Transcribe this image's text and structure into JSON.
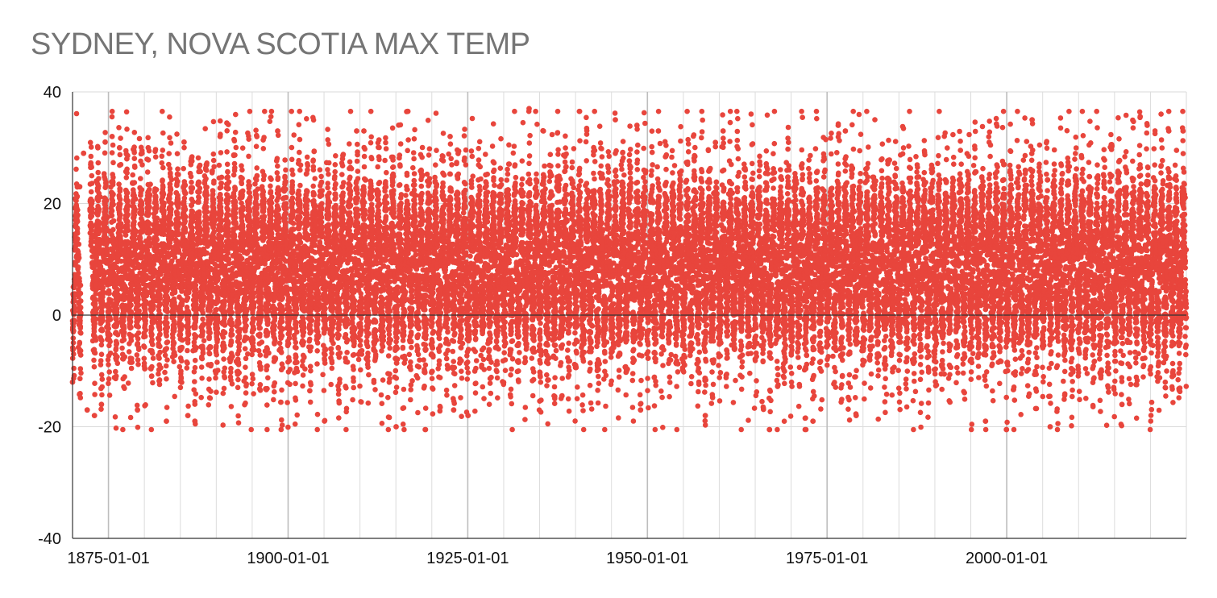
{
  "chart_data": {
    "type": "scatter",
    "title": "SYDNEY, NOVA SCOTIA MAX TEMP",
    "xlabel": "",
    "ylabel": "",
    "x_range": [
      "1870-01-01",
      "2024-12-31"
    ],
    "ylim": [
      -40,
      40
    ],
    "y_ticks": [
      40,
      20,
      0,
      -20,
      -40
    ],
    "y_tick_labels": [
      "40",
      "20",
      "0",
      "-20",
      "-40"
    ],
    "x_tick_labels": [
      "1875-01-01",
      "1900-01-01",
      "1925-01-01",
      "1950-01-01",
      "1975-01-01",
      "2000-01-01"
    ],
    "x_gridlines": "every 5 years",
    "grid": true,
    "legend": "none",
    "marker_color": "#e8453c",
    "series": [
      {
        "x": [
          "1870-01-01",
          "1871-01-01",
          "1871-07-15",
          "1872-07-10",
          "1873-07-12",
          "1874-07-20",
          "1875-07-05",
          "1876-07-18",
          "1877-07-22",
          "1880-07-14",
          "1885-07-10",
          "1890-07-16",
          "1898-07-20",
          "1909-07-14",
          "1910-07-18",
          "1922-07-20",
          "1933-07-15",
          "1935-07-12",
          "1945-07-18",
          "1948-07-20",
          "1951-07-14",
          "1960-07-16",
          "1976-07-20",
          "1977-07-18",
          "2003-07-15",
          "2022-07-20",
          "2024-07-18",
          "1871-01-20",
          "1872-01-15",
          "1873-01-18",
          "1874-01-10",
          "1879-01-15",
          "1883-01-25",
          "1886-01-20",
          "1887-01-12",
          "1915-01-12",
          "1923-01-15",
          "1925-01-14",
          "1949-01-18",
          "1958-01-20",
          "1973-01-15",
          "1979-01-18",
          "1997-01-20",
          "2006-01-18",
          "2016-01-15",
          "2023-01-12",
          "1870-04-15",
          "1872-10-15",
          "1895-04-10",
          "1912-10-20",
          "1931-04-15",
          "1955-10-15",
          "1968-04-20",
          "1988-10-10",
          "2011-04-15",
          "2024-10-10"
        ],
        "y": [
          -12,
          23,
          29,
          27,
          30,
          31,
          32,
          30,
          28,
          30,
          31,
          32,
          33,
          33,
          33,
          32,
          37,
          33,
          35,
          34,
          33,
          33,
          34,
          33,
          35,
          33,
          33,
          -1,
          -17,
          -18,
          -16,
          -17,
          -19,
          -18,
          -19,
          -20,
          -17,
          -18,
          -17,
          -18,
          -19,
          -18,
          -19,
          -20,
          -16,
          -11,
          6,
          12,
          8,
          14,
          5,
          11,
          9,
          7,
          13,
          15
        ]
      }
    ]
  }
}
